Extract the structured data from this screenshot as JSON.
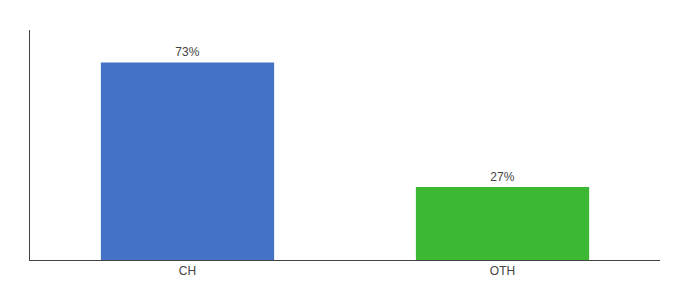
{
  "chart_data": {
    "type": "bar",
    "categories": [
      "CH",
      "OTH"
    ],
    "values": [
      73,
      27
    ],
    "value_labels": [
      "73%",
      "27%"
    ],
    "colors": [
      "#4472c4",
      "#3cb832"
    ],
    "ylim": [
      0,
      85
    ],
    "yticks": [],
    "data_labels": true,
    "tick_labels": "x",
    "grid": false
  }
}
